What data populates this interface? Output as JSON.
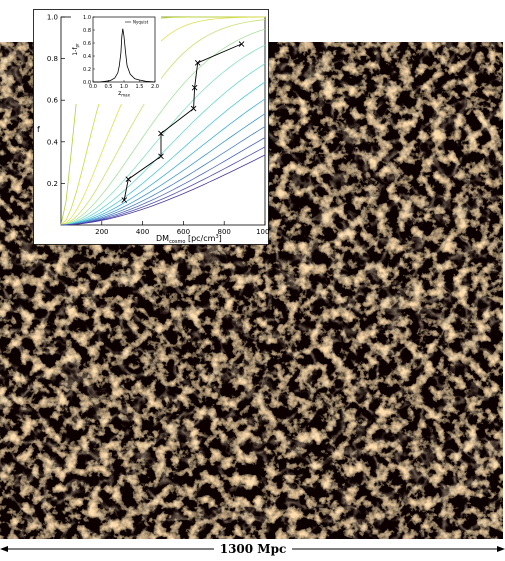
{
  "scalebar": {
    "label": "1300 Mpc"
  },
  "chart_data": [
    {
      "type": "line",
      "title": "",
      "xlabel": "DM",
      "xlabel_sub": "cosmo",
      "xlabel_unit": "[pc/cm",
      "xlabel_sup": "3",
      "xlabel_close": "]",
      "ylabel": "f",
      "xlim": [
        0,
        1000
      ],
      "ylim": [
        0,
        1.0
      ],
      "xticks": [
        "200",
        "400",
        "600",
        "800",
        "1000"
      ],
      "yticks": [
        "0.2",
        "0.4",
        "0.6",
        "0.8",
        "1.0"
      ],
      "curve_colors": [
        "#b0d040",
        "#c8dc40",
        "#e0e050",
        "#c8e070",
        "#a8e0a0",
        "#88e0c0",
        "#68d8d0",
        "#50c8d8",
        "#40b0d8",
        "#4098d0",
        "#4880c8",
        "#5068c0",
        "#5050b0",
        "#4838a0"
      ],
      "series": [
        {
          "x": [
            310,
            330,
            490,
            490,
            650,
            655,
            670,
            885
          ],
          "y": [
            0.12,
            0.22,
            0.33,
            0.44,
            0.56,
            0.66,
            0.78,
            0.87
          ]
        }
      ],
      "grid": false
    },
    {
      "type": "line",
      "title": "",
      "xlabel": "z",
      "xlabel_sub": "max",
      "ylabel": "1-f",
      "ylabel_sub": "pr",
      "xlim": [
        0.0,
        2.0
      ],
      "ylim": [
        0.0,
        1.0
      ],
      "xticks": [
        "0.0",
        "0.5",
        "1.0",
        "1.5",
        "2.0"
      ],
      "yticks": [
        "0.0",
        "0.2",
        "0.4",
        "0.6",
        "0.8",
        "1.0"
      ],
      "legend": {
        "entries": [
          "Nyquist"
        ],
        "placement": "top-right"
      },
      "series": [
        {
          "name": "Nyquist",
          "x": [
            0.0,
            0.2,
            0.4,
            0.55,
            0.7,
            0.8,
            0.85,
            0.9,
            0.93,
            0.96,
            1.0,
            1.05,
            1.1,
            1.2,
            1.35,
            1.5,
            1.7,
            2.0
          ],
          "y": [
            0.0,
            0.0,
            0.01,
            0.02,
            0.06,
            0.14,
            0.25,
            0.45,
            0.7,
            0.82,
            0.7,
            0.45,
            0.25,
            0.12,
            0.05,
            0.03,
            0.01,
            0.0
          ]
        }
      ]
    }
  ]
}
